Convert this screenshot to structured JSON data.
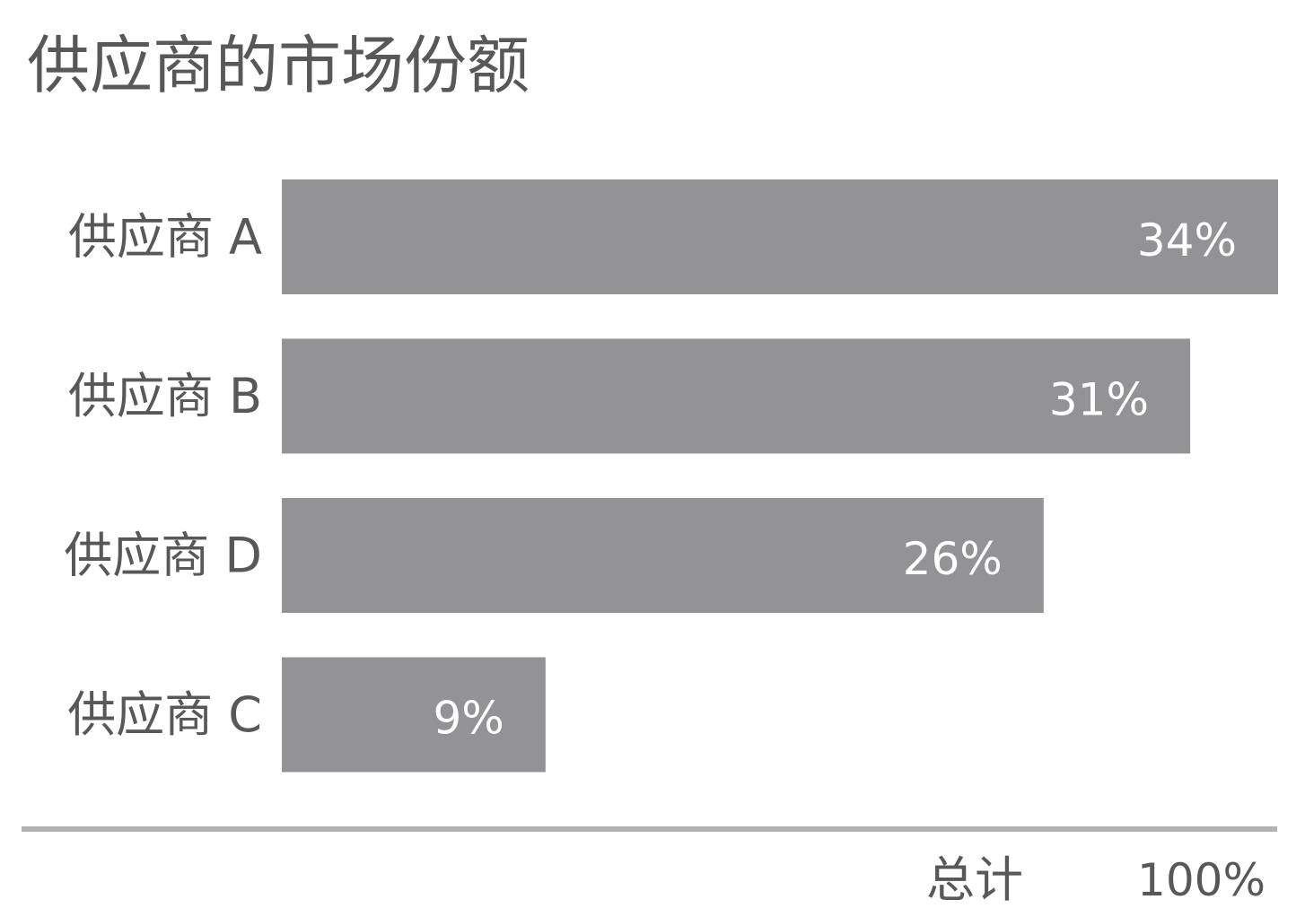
{
  "chart_data": {
    "type": "bar",
    "orientation": "horizontal",
    "title": "供应商的市场份额",
    "categories": [
      "供应商 A",
      "供应商 B",
      "供应商 D",
      "供应商 C"
    ],
    "values": [
      34,
      31,
      26,
      9
    ],
    "value_labels": [
      "34%",
      "31%",
      "26%",
      "9%"
    ],
    "unit": "%",
    "xlim": [
      0,
      34
    ],
    "grid": false,
    "legend": "none",
    "bar_color": "#939396",
    "total": {
      "label": "总计",
      "value": "100%"
    }
  }
}
